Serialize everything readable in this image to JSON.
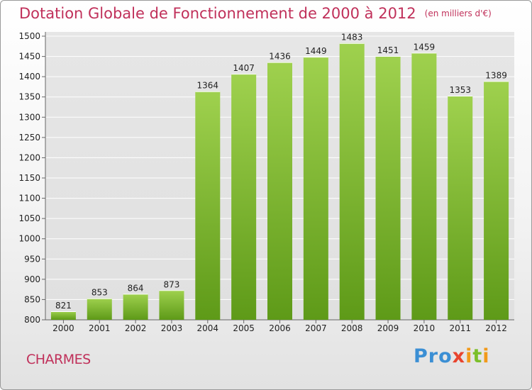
{
  "chart_data": {
    "type": "bar",
    "title": "Dotation Globale de Fonctionnement de 2000 à 2012",
    "unit_label": "(en milliers d'€)",
    "categories": [
      "2000",
      "2001",
      "2002",
      "2003",
      "2004",
      "2005",
      "2006",
      "2007",
      "2008",
      "2009",
      "2010",
      "2011",
      "2012"
    ],
    "values": [
      821,
      853,
      864,
      873,
      1364,
      1407,
      1436,
      1449,
      1483,
      1451,
      1459,
      1353,
      1389
    ],
    "ylim": [
      800,
      1500
    ],
    "yticks": [
      800,
      850,
      900,
      950,
      1000,
      1050,
      1100,
      1150,
      1200,
      1250,
      1300,
      1350,
      1400,
      1450,
      1500
    ],
    "grid": true,
    "bar_color": "#7ab52e",
    "title_color": "#c0305a"
  },
  "commune": "CHARMES",
  "logo": {
    "parts": [
      "Pro",
      "x",
      "i",
      "t",
      "i"
    ]
  }
}
